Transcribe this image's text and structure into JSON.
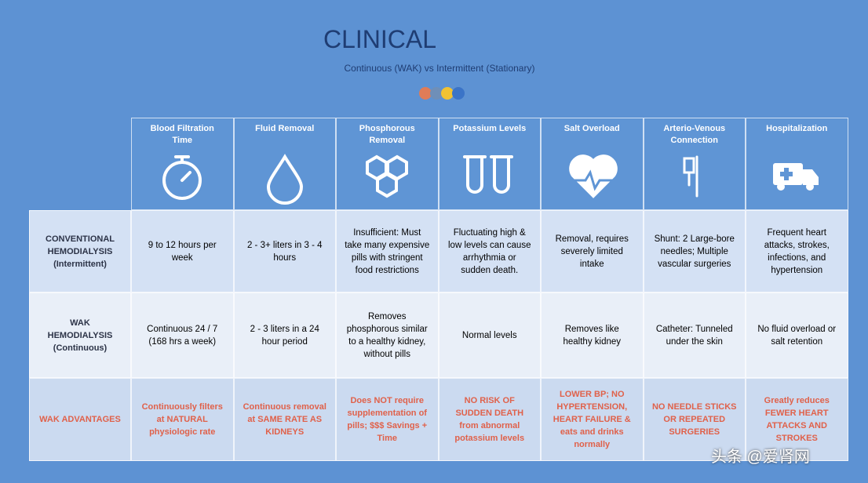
{
  "header": {
    "title": "CLINICAL",
    "subtitle": "Continuous (WAK) vs Intermittent (Stationary)"
  },
  "table": {
    "columns": [
      "Blood Filtration Time",
      "Fluid Removal",
      "Phosphorous Removal",
      "Potassium Levels",
      "Salt Overload",
      "Arterio-Venous Connection",
      "Hospitalization"
    ],
    "rows": [
      {
        "label": "CONVENTIONAL HEMODIALYSIS (Intermittent)",
        "cells": [
          "9 to 12 hours per week",
          "2 - 3+ liters in 3 - 4 hours",
          "Insufficient: Must take many expensive pills with stringent food restrictions",
          "Fluctuating high & low levels can cause arrhythmia or sudden death.",
          "Removal, requires severely limited intake",
          "Shunt: 2 Large-bore needles; Multiple vascular surgeries",
          "Frequent heart attacks, strokes, infections, and hypertension"
        ]
      },
      {
        "label": "WAK HEMODIALYSIS (Continuous)",
        "cells": [
          "Continuous 24 / 7 (168 hrs a week)",
          "2 - 3 liters in a 24 hour period",
          "Removes phosphorous similar to a healthy kidney, without pills",
          "Normal levels",
          "Removes like healthy kidney",
          "Catheter: Tunneled under the skin",
          "No fluid overload or salt retention"
        ]
      },
      {
        "label": "WAK ADVANTAGES",
        "cells": [
          "Continuously filters at NATURAL physiologic rate",
          "Continuous removal at SAME RATE AS KIDNEYS",
          "Does NOT require supplementation of pills; $$$ Savings + Time",
          "NO RISK OF SUDDEN DEATH from abnormal potassium levels",
          "LOWER BP; NO HYPERTENSION, HEART FAILURE & eats and drinks normally",
          "NO NEEDLE STICKS OR REPEATED SURGERIES",
          "Greatly reduces FEWER HEART ATTACKS AND STROKES"
        ]
      }
    ]
  },
  "watermark": "头条 @爱肾网"
}
